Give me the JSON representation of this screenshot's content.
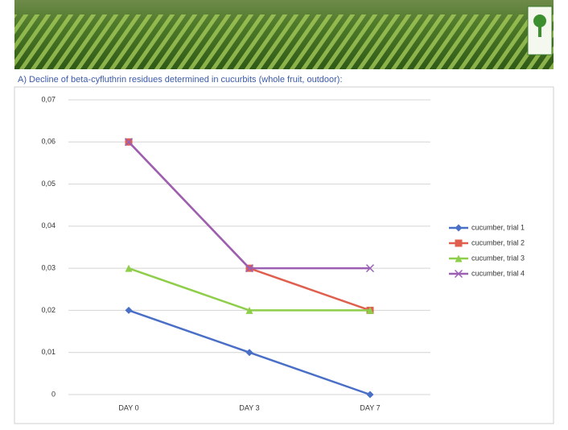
{
  "heading": "A) Decline of beta-cyfluthrin residues determined in cucurbits (whole fruit, outdoor):",
  "chart_data": {
    "type": "line",
    "categories": [
      "DAY 0",
      "DAY 3",
      "DAY 7"
    ],
    "series": [
      {
        "name": "cucumber, trial 1",
        "color": "#4a6fc7",
        "marker": "diamond",
        "values": [
          0.02,
          0.01,
          0
        ]
      },
      {
        "name": "cucumber, trial 2",
        "color": "#e0604f",
        "marker": "square",
        "values": [
          0.06,
          0.03,
          0.02
        ]
      },
      {
        "name": "cucumber, trial 3",
        "color": "#8fce4a",
        "marker": "triangle",
        "values": [
          0.03,
          0.02,
          0.02
        ]
      },
      {
        "name": "cucumber, trial 4",
        "color": "#9b5fb3",
        "marker": "x",
        "values": [
          0.06,
          0.03,
          0.03
        ]
      }
    ],
    "ylim": [
      0,
      0.07
    ],
    "yticks": [
      0,
      {
        "value": 0.01,
        "label": "0,01"
      },
      {
        "value": 0.02,
        "label": "0,02"
      },
      {
        "value": 0.03,
        "label": "0,03"
      },
      {
        "value": 0.04,
        "label": "0,04"
      },
      {
        "value": 0.05,
        "label": "0,05"
      },
      {
        "value": 0.06,
        "label": "0,06"
      },
      {
        "value": 0.07,
        "label": "0,07"
      }
    ],
    "grid": true,
    "legend": "right"
  }
}
